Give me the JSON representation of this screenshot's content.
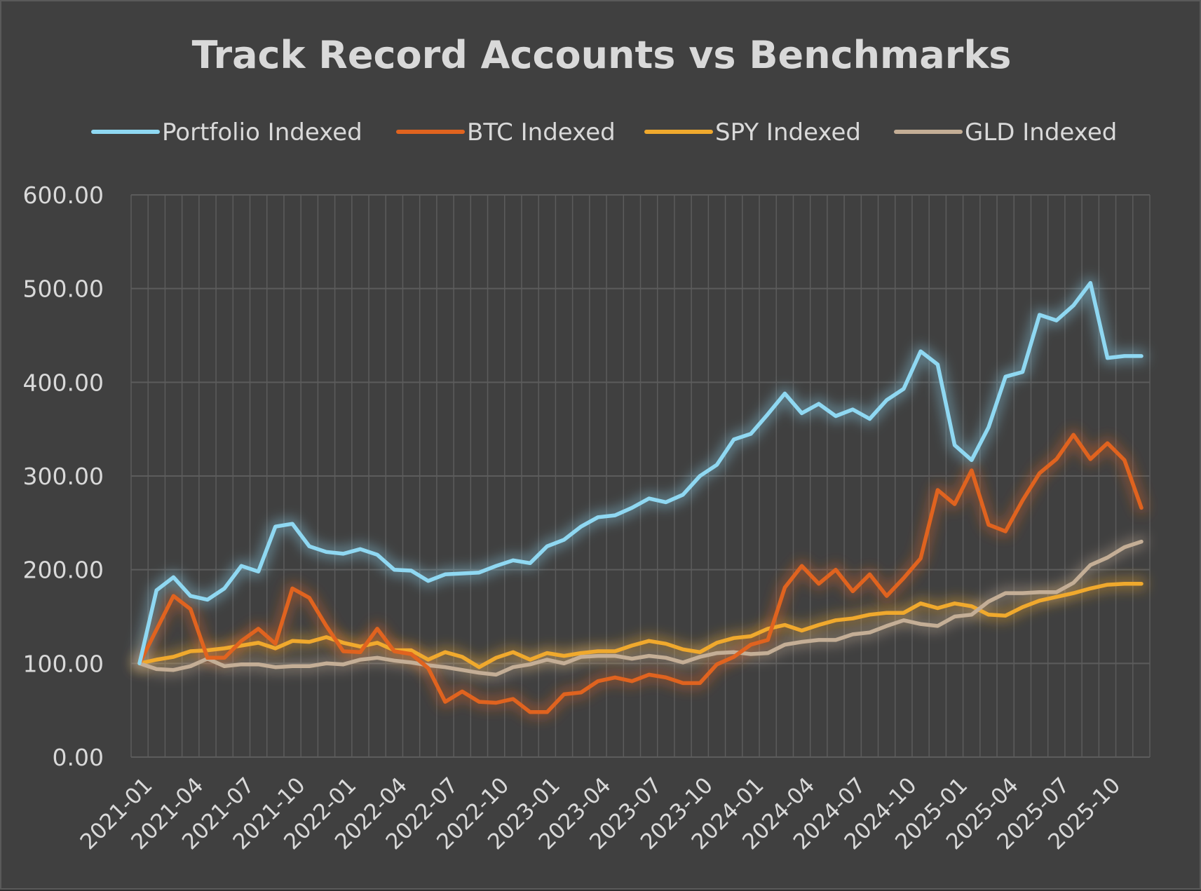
{
  "chart_data": {
    "type": "line",
    "title": "Track Record Accounts vs Benchmarks",
    "xlabel": "",
    "ylabel": "",
    "ylim": [
      0,
      600
    ],
    "y_ticks": [
      "0.00",
      "100.00",
      "200.00",
      "300.00",
      "400.00",
      "500.00",
      "600.00"
    ],
    "grid": true,
    "legend_position": "top",
    "background_color": "#404040",
    "x": [
      "2021-01",
      "2021-02",
      "2021-03",
      "2021-04",
      "2021-05",
      "2021-06",
      "2021-07",
      "2021-08",
      "2021-09",
      "2021-10",
      "2021-11",
      "2021-12",
      "2022-01",
      "2022-02",
      "2022-03",
      "2022-04",
      "2022-05",
      "2022-06",
      "2022-07",
      "2022-08",
      "2022-09",
      "2022-10",
      "2022-11",
      "2022-12",
      "2023-01",
      "2023-02",
      "2023-03",
      "2023-04",
      "2023-05",
      "2023-06",
      "2023-07",
      "2023-08",
      "2023-09",
      "2023-10",
      "2023-11",
      "2023-12",
      "2024-01",
      "2024-02",
      "2024-03",
      "2024-04",
      "2024-05",
      "2024-06",
      "2024-07",
      "2024-08",
      "2024-09",
      "2024-10",
      "2024-11",
      "2024-12",
      "2025-01",
      "2025-02",
      "2025-03",
      "2025-04",
      "2025-05",
      "2025-06",
      "2025-07",
      "2025-08",
      "2025-09",
      "2025-10",
      "2025-11",
      "2025-12"
    ],
    "x_tick_labels": [
      "2021-01",
      "2021-04",
      "2021-07",
      "2021-10",
      "2022-01",
      "2022-04",
      "2022-07",
      "2022-10",
      "2023-01",
      "2023-04",
      "2023-07",
      "2023-10",
      "2024-01",
      "2024-04",
      "2024-07",
      "2024-10",
      "2025-01",
      "2025-04",
      "2025-07",
      "2025-10"
    ],
    "series": [
      {
        "name": "Portfolio Indexed",
        "color": "#8fd8f2",
        "values": [
          100,
          178,
          192,
          172,
          168,
          180,
          204,
          198,
          246,
          249,
          225,
          219,
          217,
          222,
          216,
          200,
          199,
          188,
          195,
          196,
          197,
          204,
          210,
          207,
          225,
          232,
          246,
          256,
          258,
          266,
          276,
          272,
          280,
          300,
          312,
          339,
          345,
          366,
          388,
          367,
          377,
          364,
          371,
          361,
          381,
          393,
          433,
          419,
          333,
          317,
          352,
          406,
          411,
          472,
          466,
          482,
          506,
          426,
          428,
          428
        ]
      },
      {
        "name": "BTC Indexed",
        "color": "#e0631f",
        "values": [
          100,
          136,
          172,
          158,
          106,
          106,
          124,
          137,
          121,
          180,
          170,
          140,
          113,
          112,
          137,
          113,
          110,
          95,
          59,
          70,
          59,
          58,
          62,
          48,
          48,
          67,
          69,
          81,
          85,
          81,
          88,
          85,
          79,
          79,
          99,
          107,
          120,
          125,
          181,
          204,
          185,
          200,
          177,
          195,
          172,
          191,
          212,
          285,
          270,
          306,
          248,
          241,
          274,
          303,
          318,
          344,
          318,
          335,
          317,
          266
        ]
      },
      {
        "name": "SPY Indexed",
        "color": "#f0a92d",
        "values": [
          100,
          104,
          107,
          113,
          114,
          116,
          119,
          122,
          116,
          124,
          123,
          128,
          122,
          118,
          122,
          114,
          114,
          104,
          112,
          107,
          96,
          106,
          112,
          104,
          111,
          108,
          111,
          113,
          113,
          119,
          124,
          121,
          115,
          112,
          122,
          127,
          129,
          137,
          141,
          135,
          141,
          146,
          148,
          152,
          154,
          154,
          164,
          159,
          164,
          161,
          152,
          151,
          160,
          167,
          171,
          175,
          180,
          184,
          185,
          185
        ]
      },
      {
        "name": "GLD Indexed",
        "color": "#c4ae96",
        "values": [
          100,
          94,
          93,
          97,
          105,
          97,
          99,
          99,
          96,
          97,
          97,
          100,
          99,
          104,
          106,
          103,
          101,
          98,
          96,
          93,
          90,
          88,
          96,
          99,
          104,
          100,
          107,
          108,
          108,
          105,
          108,
          106,
          101,
          107,
          111,
          112,
          110,
          111,
          120,
          123,
          125,
          125,
          131,
          133,
          140,
          146,
          142,
          140,
          150,
          152,
          166,
          175,
          175,
          176,
          176,
          186,
          205,
          213,
          224,
          230
        ]
      }
    ]
  }
}
